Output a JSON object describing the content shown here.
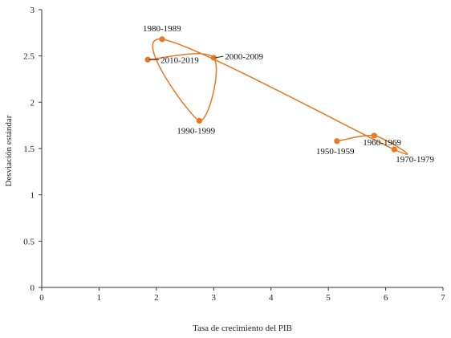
{
  "chart_data": {
    "type": "scatter",
    "connected": true,
    "line_style": "smooth",
    "xlabel": "Tasa de crecimiento del PIB",
    "ylabel": "Desviación estándar",
    "xlim": [
      0,
      7
    ],
    "ylim": [
      0,
      3
    ],
    "xticks": [
      "0",
      "1",
      "2",
      "3",
      "4",
      "5",
      "6",
      "7"
    ],
    "yticks": [
      "0",
      "0.5",
      "1",
      "1.5",
      "2",
      "2.5",
      "3"
    ],
    "grid": false,
    "legend": "none",
    "color": "#E87722",
    "points": [
      {
        "label": "1950-1959",
        "x": 5.15,
        "y": 1.58
      },
      {
        "label": "1960-1969",
        "x": 5.8,
        "y": 1.64
      },
      {
        "label": "1970-1979",
        "x": 6.15,
        "y": 1.49
      },
      {
        "label": "1980-1989",
        "x": 2.1,
        "y": 2.68
      },
      {
        "label": "1990-1999",
        "x": 2.75,
        "y": 1.8
      },
      {
        "label": "2000-2009",
        "x": 3.0,
        "y": 2.48
      },
      {
        "label": "2010-2019",
        "x": 1.85,
        "y": 2.46
      }
    ]
  }
}
